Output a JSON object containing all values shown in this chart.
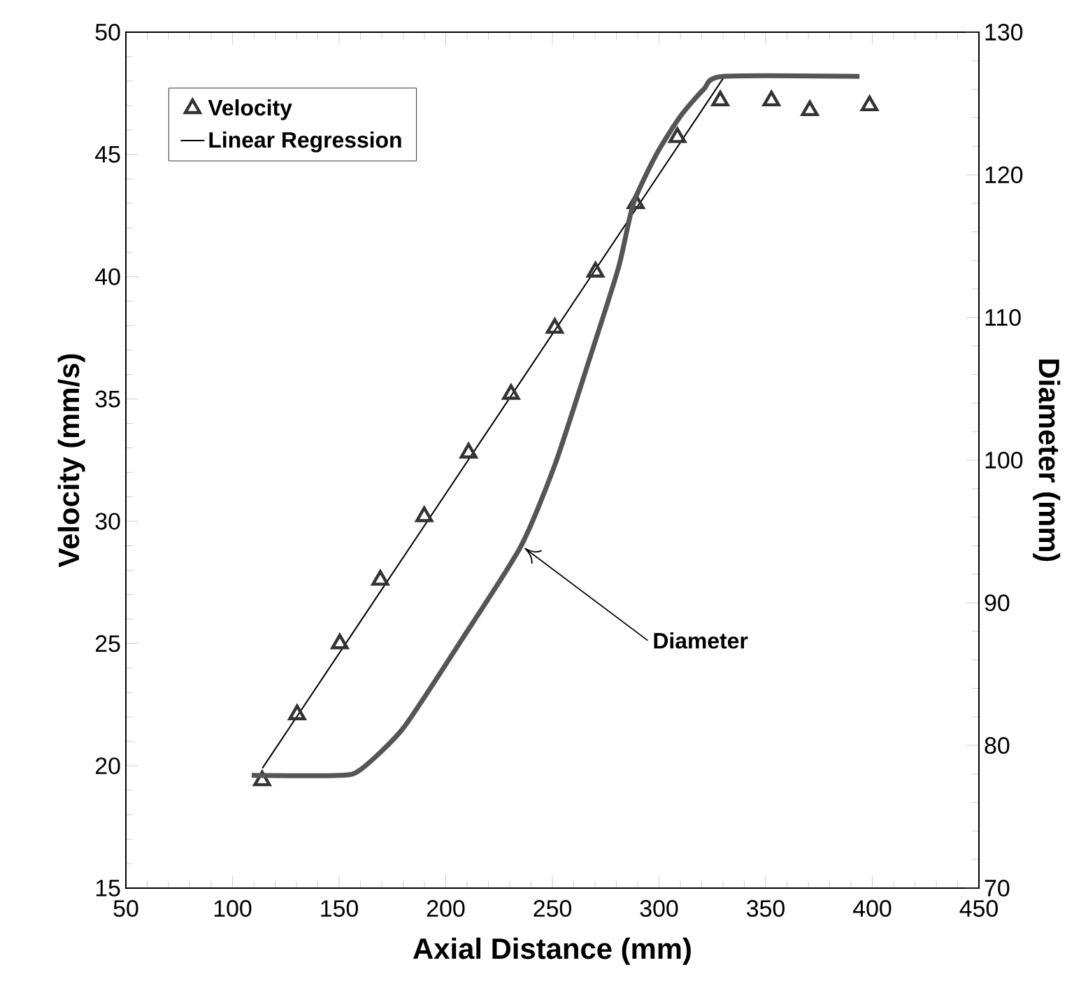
{
  "chart_data": {
    "type": "scatter",
    "xlabel": "Axial Distance (mm)",
    "ylabel": "Velocity (mm/s)",
    "y2label": "Diameter (mm)",
    "xlim": [
      50,
      450
    ],
    "xticks": [
      50,
      100,
      150,
      200,
      250,
      300,
      350,
      400,
      450
    ],
    "ylim": [
      15,
      50
    ],
    "yticks": [
      15,
      20,
      25,
      30,
      35,
      40,
      45,
      50
    ],
    "y2lim": [
      70,
      130
    ],
    "y2ticks": [
      70,
      80,
      90,
      100,
      110,
      120,
      130
    ],
    "legend": "top left",
    "annotations": [
      {
        "text": "Diameter",
        "x": 237,
        "y": 28.9
      }
    ],
    "series": [
      {
        "name": "Velocity",
        "marker": "triangle",
        "color": "#333333",
        "x": [
          113.9,
          130.3,
          150.3,
          169.3,
          189.9,
          210.7,
          230.6,
          251.1,
          270.2,
          289.1,
          308.6,
          328.7,
          352.7,
          370.7,
          398.7
        ],
        "values": [
          19.4,
          22.1,
          25.0,
          27.6,
          30.2,
          32.8,
          35.2,
          37.9,
          40.2,
          43.0,
          45.7,
          47.2,
          47.2,
          46.8,
          47.0
        ]
      },
      {
        "name": "Linear Regression",
        "type": "line",
        "line_style": "solid",
        "color": "#000000",
        "x": [
          114,
          330
        ],
        "values": [
          19.9,
          48.1
        ]
      },
      {
        "type": "line",
        "axis": "y2",
        "line_style": "solid",
        "color": "#555555",
        "x": [
          109,
          150,
          160,
          180,
          207,
          235,
          251,
          267,
          281,
          288,
          299,
          310,
          321,
          330,
          394
        ],
        "values": [
          77.9,
          77.9,
          78.3,
          81.2,
          87.3,
          93.9,
          99.6,
          106.9,
          113.5,
          118.0,
          121.5,
          124.1,
          126.0,
          126.9,
          126.9
        ]
      }
    ]
  }
}
